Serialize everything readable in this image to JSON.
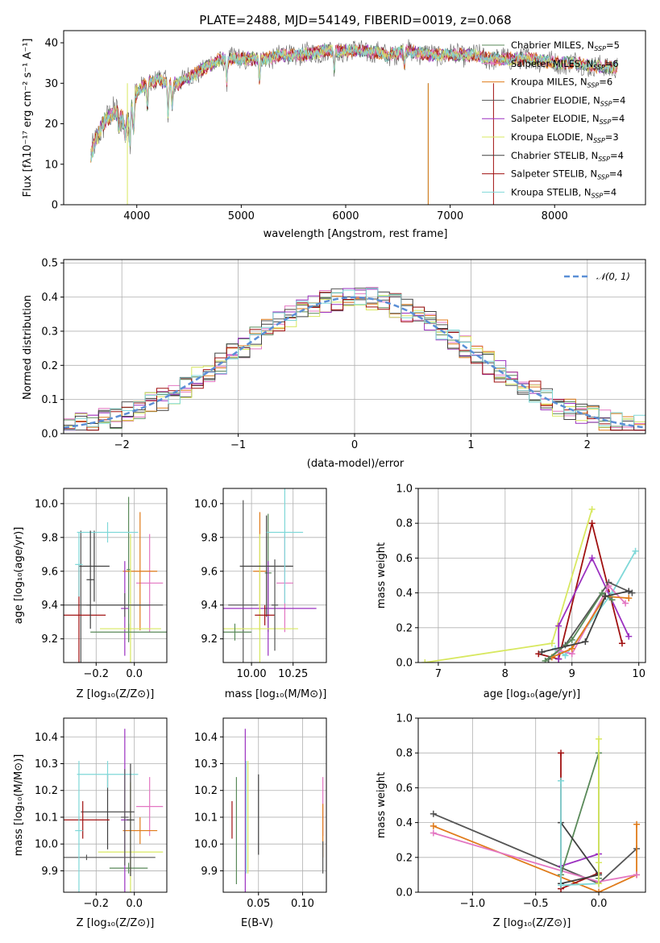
{
  "colors": [
    "#5a8a5a",
    "#e377c2",
    "#e07b1a",
    "#555555",
    "#9b30c0",
    "#d8e860",
    "#404040",
    "#a01010",
    "#7fd8d8"
  ],
  "charts": {
    "spectrum": {
      "type": "line",
      "title": "PLATE=2488, MJD=54149, FIBERID=0019, z=0.068",
      "xlabel": "wavelength [Angstrom, rest frame]",
      "ylabel": "Flux [fλ10⁻¹⁷ erg cm⁻² s⁻¹ A⁻¹]",
      "xlim": [
        3300,
        8870
      ],
      "ylim": [
        0,
        43
      ],
      "xticks": [
        {
          "v": 4000,
          "label": "4000"
        },
        {
          "v": 5000,
          "label": "5000"
        },
        {
          "v": 6000,
          "label": "6000"
        },
        {
          "v": 7000,
          "label": "7000"
        },
        {
          "v": 8000,
          "label": "8000"
        }
      ],
      "yticks": [
        {
          "v": 0,
          "label": "0"
        },
        {
          "v": 10,
          "label": "10"
        },
        {
          "v": 20,
          "label": "20"
        },
        {
          "v": 30,
          "label": "30"
        },
        {
          "v": 40,
          "label": "40"
        }
      ],
      "legend_position": "top-right",
      "x": [
        3560,
        3620,
        3700,
        3800,
        3900,
        3960,
        4000,
        4100,
        4200,
        4300,
        4400,
        4600,
        4800,
        5000,
        5200,
        5400,
        5600,
        5800,
        6000,
        6200,
        6400,
        6600,
        6800,
        7000,
        7200,
        7400,
        7600,
        7800,
        8000,
        8200,
        8400,
        8600
      ],
      "y": [
        12,
        17,
        21,
        23,
        20,
        25,
        28,
        30,
        31,
        30,
        30,
        33,
        36,
        36,
        36,
        37,
        37,
        38,
        38,
        38,
        37,
        38,
        37,
        37,
        37,
        36,
        36,
        36,
        35,
        35,
        34,
        34
      ],
      "series": [
        {
          "label": "Chabrier MILES, N",
          "sub": "SSP",
          "suffix": "=5"
        },
        {
          "label": "Salpeter MILES, N",
          "sub": "SSP",
          "suffix": "=6"
        },
        {
          "label": "Kroupa MILES, N",
          "sub": "SSP",
          "suffix": "=6"
        },
        {
          "label": "Chabrier ELODIE, N",
          "sub": "SSP",
          "suffix": "=4"
        },
        {
          "label": "Salpeter ELODIE, N",
          "sub": "SSP",
          "suffix": "=4"
        },
        {
          "label": "Kroupa ELODIE, N",
          "sub": "SSP",
          "suffix": "=3"
        },
        {
          "label": "Chabrier STELIB, N",
          "sub": "SSP",
          "suffix": "=4"
        },
        {
          "label": "Salpeter STELIB, N",
          "sub": "SSP",
          "suffix": "=4"
        },
        {
          "label": "Kroupa STELIB, N",
          "sub": "SSP",
          "suffix": "=4"
        }
      ]
    },
    "residuals": {
      "type": "bar",
      "xlabel": "(data-model)/error",
      "ylabel": "Normed distribution",
      "xlim": [
        -2.5,
        2.5
      ],
      "ylim": [
        0,
        0.51
      ],
      "xticks": [
        {
          "v": -2,
          "label": "−2"
        },
        {
          "v": -1,
          "label": "−1"
        },
        {
          "v": 0,
          "label": "0"
        },
        {
          "v": 1,
          "label": "1"
        },
        {
          "v": 2,
          "label": "2"
        }
      ],
      "yticks": [
        {
          "v": 0,
          "label": "0.0"
        },
        {
          "v": 0.1,
          "label": "0.1"
        },
        {
          "v": 0.2,
          "label": "0.2"
        },
        {
          "v": 0.3,
          "label": "0.3"
        },
        {
          "v": 0.4,
          "label": "0.4"
        },
        {
          "v": 0.5,
          "label": "0.5"
        }
      ],
      "legend": "𝒩(0, 1)",
      "legend_position": "top-right",
      "bin_width": 0.1
    },
    "z_age": {
      "type": "scatter",
      "xlabel": "Z [log₁₀(Z/Z⊙)]",
      "ylabel": "age  [log₁₀(age/yr)]",
      "xlim": [
        -0.37,
        0.17
      ],
      "ylim": [
        9.06,
        10.09
      ],
      "xticks": [
        {
          "v": -0.2,
          "label": "−0.2"
        },
        {
          "v": 0,
          "label": "0.0"
        }
      ],
      "yticks": [
        {
          "v": 9.2,
          "label": "9.2"
        },
        {
          "v": 9.4,
          "label": "9.4"
        },
        {
          "v": 9.6,
          "label": "9.6"
        },
        {
          "v": 9.8,
          "label": "9.8"
        },
        {
          "v": 10.0,
          "label": "10.0"
        }
      ],
      "points": [
        {
          "x": -0.03,
          "y": 9.61,
          "xerr": 0.01,
          "yerr": 0.43,
          "c": 0
        },
        {
          "x": 0.08,
          "y": 9.53,
          "xerr": 0.07,
          "yerr": 0.29,
          "c": 1
        },
        {
          "x": 0.03,
          "y": 9.6,
          "xerr": 0.09,
          "yerr": 0.35,
          "c": 2
        },
        {
          "x": -0.28,
          "y": 9.4,
          "xerr": 0.36,
          "yerr": 0.44,
          "c": 3
        },
        {
          "x": -0.05,
          "y": 9.38,
          "xerr": 0.02,
          "yerr": 0.28,
          "c": 4
        },
        {
          "x": -0.02,
          "y": 9.26,
          "xerr": 0.16,
          "yerr": 0.56,
          "c": 5
        },
        {
          "x": -0.21,
          "y": 9.63,
          "xerr": 0.08,
          "yerr": 0.21,
          "c": 6
        },
        {
          "x": -0.29,
          "y": 9.34,
          "xerr": 0.14,
          "yerr": 0.3,
          "c": 7
        },
        {
          "x": -0.14,
          "y": 9.83,
          "xerr": 0.16,
          "yerr": 0.06,
          "c": 8
        },
        {
          "x": -0.03,
          "y": 9.24,
          "xerr": 0.2,
          "yerr": 0.05,
          "c": 0
        },
        {
          "x": -0.05,
          "y": 9.4,
          "xerr": 0.2,
          "yerr": 0.07,
          "c": 3
        },
        {
          "x": -0.23,
          "y": 9.55,
          "xerr": 0.02,
          "yerr": 0.29,
          "c": 6
        },
        {
          "x": -0.29,
          "y": 9.64,
          "xerr": 0.02,
          "yerr": 0.19,
          "c": 8
        }
      ]
    },
    "mass_age": {
      "type": "scatter",
      "xlabel": "mass [log₁₀(M/M⊙)]",
      "ylabel": "",
      "xlim": [
        9.83,
        10.45
      ],
      "ylim": [
        9.06,
        10.09
      ],
      "xticks": [
        {
          "v": 10.0,
          "label": "10.00"
        },
        {
          "v": 10.25,
          "label": "10.25"
        }
      ],
      "yticks": [
        {
          "v": 9.2,
          "label": "9.2"
        },
        {
          "v": 9.4,
          "label": "9.4"
        },
        {
          "v": 9.6,
          "label": "9.6"
        },
        {
          "v": 9.8,
          "label": "9.8"
        },
        {
          "v": 10.0,
          "label": "10.0"
        }
      ],
      "points": [
        {
          "x": 10.1,
          "y": 9.59,
          "xerr": 0.02,
          "yerr": 0.35,
          "c": 0
        },
        {
          "x": 10.2,
          "y": 9.53,
          "xerr": 0.05,
          "yerr": 0.29,
          "c": 1
        },
        {
          "x": 10.05,
          "y": 9.6,
          "xerr": 0.04,
          "yerr": 0.35,
          "c": 2
        },
        {
          "x": 9.95,
          "y": 9.4,
          "xerr": 0.09,
          "yerr": 0.62,
          "c": 3
        },
        {
          "x": 10.1,
          "y": 9.38,
          "xerr": 0.29,
          "yerr": 0.28,
          "c": 4
        },
        {
          "x": 10.05,
          "y": 9.26,
          "xerr": 0.23,
          "yerr": 0.56,
          "c": 5
        },
        {
          "x": 10.09,
          "y": 9.63,
          "xerr": 0.16,
          "yerr": 0.3,
          "c": 6
        },
        {
          "x": 10.08,
          "y": 9.34,
          "xerr": 0.06,
          "yerr": 0.06,
          "c": 7
        },
        {
          "x": 10.2,
          "y": 9.83,
          "xerr": 0.11,
          "yerr": 0.42,
          "c": 8
        },
        {
          "x": 9.9,
          "y": 9.24,
          "xerr": 0.1,
          "yerr": 0.05,
          "c": 0
        },
        {
          "x": 10.14,
          "y": 9.4,
          "xerr": 0.02,
          "yerr": 0.27,
          "c": 3
        }
      ]
    },
    "weight_age": {
      "type": "line",
      "xlabel": "age  [log₁₀(age/yr)]",
      "ylabel": "mass weight",
      "xlim": [
        6.7,
        10.1
      ],
      "ylim": [
        0,
        1.0
      ],
      "xticks": [
        {
          "v": 7,
          "label": "7"
        },
        {
          "v": 8,
          "label": "8"
        },
        {
          "v": 9,
          "label": "9"
        },
        {
          "v": 10,
          "label": "10"
        }
      ],
      "yticks": [
        {
          "v": 0,
          "label": "0.0"
        },
        {
          "v": 0.2,
          "label": "0.2"
        },
        {
          "v": 0.4,
          "label": "0.4"
        },
        {
          "v": 0.6,
          "label": "0.6"
        },
        {
          "v": 0.8,
          "label": "0.8"
        },
        {
          "v": 1.0,
          "label": "1.0"
        }
      ],
      "series": [
        {
          "c": 5,
          "x": [
            6.8,
            8.7,
            9.3
          ],
          "y": [
            0.0,
            0.11,
            0.88
          ]
        },
        {
          "c": 7,
          "x": [
            8.5,
            8.8,
            9.3,
            9.75
          ],
          "y": [
            0.05,
            0.02,
            0.8,
            0.11
          ]
        },
        {
          "c": 4,
          "x": [
            8.8,
            8.8,
            9.3,
            9.85
          ],
          "y": [
            0.02,
            0.21,
            0.6,
            0.15
          ]
        },
        {
          "c": 8,
          "x": [
            8.75,
            8.9,
            9.6,
            9.95
          ],
          "y": [
            0.08,
            0.04,
            0.4,
            0.64
          ]
        },
        {
          "c": 3,
          "x": [
            8.65,
            8.9,
            9.55,
            9.9
          ],
          "y": [
            0.02,
            0.1,
            0.46,
            0.4
          ]
        },
        {
          "c": 1,
          "x": [
            8.8,
            9.0,
            9.55,
            9.8
          ],
          "y": [
            0.07,
            0.05,
            0.44,
            0.34
          ]
        },
        {
          "c": 2,
          "x": [
            8.7,
            9.0,
            9.5,
            9.85
          ],
          "y": [
            0.03,
            0.08,
            0.38,
            0.37
          ]
        },
        {
          "c": 0,
          "x": [
            8.6,
            9.0,
            9.45,
            9.6
          ],
          "y": [
            0.01,
            0.13,
            0.4,
            0.36
          ]
        },
        {
          "c": 6,
          "x": [
            8.55,
            9.2,
            9.5,
            9.85
          ],
          "y": [
            0.06,
            0.12,
            0.38,
            0.41
          ]
        }
      ]
    },
    "z_mass": {
      "type": "scatter",
      "xlabel": "Z [log₁₀(Z/Z⊙)]",
      "ylabel": "mass [log₁₀(M/M⊙)]",
      "xlim": [
        -0.37,
        0.17
      ],
      "ylim": [
        9.82,
        10.47
      ],
      "xticks": [
        {
          "v": -0.2,
          "label": "−0.2"
        },
        {
          "v": 0,
          "label": "0.0"
        }
      ],
      "yticks": [
        {
          "v": 9.9,
          "label": "9.9"
        },
        {
          "v": 10.0,
          "label": "10.0"
        },
        {
          "v": 10.1,
          "label": "10.1"
        },
        {
          "v": 10.2,
          "label": "10.2"
        },
        {
          "v": 10.3,
          "label": "10.3"
        },
        {
          "v": 10.4,
          "label": "10.4"
        }
      ],
      "points": [
        {
          "x": -0.03,
          "y": 9.91,
          "xerr": 0.1,
          "yerr": 0.02,
          "c": 0
        },
        {
          "x": 0.08,
          "y": 10.14,
          "xerr": 0.07,
          "yerr": 0.11,
          "c": 1
        },
        {
          "x": 0.03,
          "y": 10.05,
          "xerr": 0.09,
          "yerr": 0.05,
          "c": 2
        },
        {
          "x": -0.25,
          "y": 9.95,
          "xerr": 0.36,
          "yerr": 0.01,
          "c": 3
        },
        {
          "x": -0.05,
          "y": 10.09,
          "xerr": 0.02,
          "yerr": 0.34,
          "c": 4
        },
        {
          "x": -0.02,
          "y": 9.97,
          "xerr": 0.17,
          "yerr": 0.26,
          "c": 5
        },
        {
          "x": -0.14,
          "y": 10.12,
          "xerr": 0.14,
          "yerr": 0.14,
          "c": 6
        },
        {
          "x": -0.27,
          "y": 10.09,
          "xerr": 0.14,
          "yerr": 0.07,
          "c": 7
        },
        {
          "x": -0.14,
          "y": 10.26,
          "xerr": 0.16,
          "yerr": 0.05,
          "c": 8
        },
        {
          "x": -0.05,
          "y": 10.1,
          "xerr": 0.02,
          "yerr": 0.18,
          "c": 3
        },
        {
          "x": -0.02,
          "y": 10.09,
          "xerr": 0.02,
          "yerr": 0.21,
          "c": 6
        },
        {
          "x": -0.29,
          "y": 10.05,
          "xerr": 0.02,
          "yerr": 0.26,
          "c": 8
        }
      ]
    },
    "ebv_mass": {
      "type": "scatter",
      "xlabel": "E(B-V)",
      "ylabel": "",
      "xlim": [
        0.01,
        0.127
      ],
      "ylim": [
        9.82,
        10.47
      ],
      "xticks": [
        {
          "v": 0.05,
          "label": "0.05"
        },
        {
          "v": 0.1,
          "label": "0.10"
        }
      ],
      "yticks": [
        {
          "v": 9.9,
          "label": "9.9"
        },
        {
          "v": 10.0,
          "label": "10.0"
        },
        {
          "v": 10.1,
          "label": "10.1"
        },
        {
          "v": 10.2,
          "label": "10.2"
        },
        {
          "v": 10.3,
          "label": "10.3"
        },
        {
          "v": 10.4,
          "label": "10.4"
        }
      ],
      "points": [
        {
          "x": 0.025,
          "y": 10.05,
          "yerr": 0.2,
          "c": 0
        },
        {
          "x": 0.123,
          "y": 10.14,
          "yerr": 0.11,
          "c": 1
        },
        {
          "x": 0.123,
          "y": 10.05,
          "yerr": 0.1,
          "c": 2
        },
        {
          "x": 0.123,
          "y": 9.95,
          "yerr": 0.06,
          "c": 3
        },
        {
          "x": 0.035,
          "y": 10.09,
          "yerr": 0.34,
          "c": 4
        },
        {
          "x": 0.038,
          "y": 10.1,
          "yerr": 0.21,
          "c": 5
        },
        {
          "x": 0.05,
          "y": 10.11,
          "yerr": 0.15,
          "c": 6
        },
        {
          "x": 0.02,
          "y": 10.09,
          "yerr": 0.07,
          "c": 7
        },
        {
          "x": 0.036,
          "y": 10.1,
          "yerr": 0.21,
          "c": 8
        }
      ]
    },
    "weight_z": {
      "type": "line",
      "xlabel": "Z [log₁₀(Z/Z⊙)]",
      "ylabel": "mass weight",
      "xlim": [
        -1.43,
        0.37
      ],
      "ylim": [
        0,
        1.0
      ],
      "xticks": [
        {
          "v": -1.0,
          "label": "−1.0"
        },
        {
          "v": -0.5,
          "label": "−0.5"
        },
        {
          "v": 0,
          "label": "0.0"
        }
      ],
      "yticks": [
        {
          "v": 0,
          "label": "0.0"
        },
        {
          "v": 0.2,
          "label": "0.2"
        },
        {
          "v": 0.4,
          "label": "0.4"
        },
        {
          "v": 0.6,
          "label": "0.6"
        },
        {
          "v": 0.8,
          "label": "0.8"
        },
        {
          "v": 1.0,
          "label": "1.0"
        }
      ],
      "series": [
        {
          "c": 3,
          "x": [
            -1.31,
            0.0,
            0.3
          ],
          "y": [
            0.45,
            0.05,
            0.25
          ]
        },
        {
          "c": 2,
          "x": [
            -1.31,
            0.0,
            0.3,
            0.3
          ],
          "y": [
            0.38,
            0.0,
            0.1,
            0.39
          ]
        },
        {
          "c": 1,
          "x": [
            -1.31,
            0.0,
            0.3
          ],
          "y": [
            0.34,
            0.06,
            0.1
          ]
        },
        {
          "c": 7,
          "x": [
            -0.3,
            -0.3,
            0.0
          ],
          "y": [
            0.8,
            0.02,
            0.11
          ]
        },
        {
          "c": 4,
          "x": [
            -0.3,
            0.0
          ],
          "y": [
            0.15,
            0.22
          ]
        },
        {
          "c": 0,
          "x": [
            -0.3,
            0.0,
            0.0
          ],
          "y": [
            0.1,
            0.8,
            0.08
          ]
        },
        {
          "c": 6,
          "x": [
            -0.3,
            0.0,
            -0.3
          ],
          "y": [
            0.4,
            0.1,
            0.05
          ]
        },
        {
          "c": 8,
          "x": [
            -0.3,
            -0.3,
            0.0
          ],
          "y": [
            0.64,
            0.04,
            0.05
          ]
        },
        {
          "c": 5,
          "x": [
            0.0,
            0.0,
            0.0
          ],
          "y": [
            0.88,
            0.17,
            0.05
          ]
        }
      ]
    }
  }
}
